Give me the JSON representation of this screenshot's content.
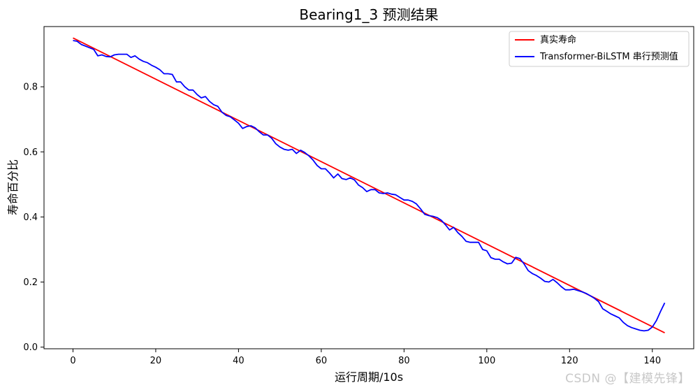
{
  "chart_data": {
    "type": "line",
    "title": "Bearing1_3 预测结果",
    "xlabel": "运行周期/10s",
    "ylabel": "寿命百分比",
    "xlim": [
      -7,
      150
    ],
    "ylim": [
      -0.005,
      0.985
    ],
    "xticks": [
      0,
      20,
      40,
      60,
      80,
      100,
      120,
      140
    ],
    "yticks": [
      0.0,
      0.2,
      0.4,
      0.6,
      0.8
    ],
    "grid": false,
    "legend_position": "top-right",
    "series": [
      {
        "name": "真实寿命",
        "color": "#ff0000",
        "x": [
          0,
          143
        ],
        "y": [
          0.95,
          0.044
        ]
      },
      {
        "name": "Transformer-BiLSTM 串行预测值",
        "color": "#0000ff",
        "x": [
          0,
          1,
          2,
          3,
          4,
          5,
          6,
          7,
          8,
          9,
          10,
          11,
          12,
          13,
          14,
          15,
          16,
          17,
          18,
          19,
          20,
          21,
          22,
          23,
          24,
          25,
          26,
          27,
          28,
          29,
          30,
          31,
          32,
          33,
          34,
          35,
          36,
          37,
          38,
          39,
          40,
          41,
          42,
          43,
          44,
          45,
          46,
          47,
          48,
          49,
          50,
          51,
          52,
          53,
          54,
          55,
          56,
          57,
          58,
          59,
          60,
          61,
          62,
          63,
          64,
          65,
          66,
          67,
          68,
          69,
          70,
          71,
          72,
          73,
          74,
          75,
          76,
          77,
          78,
          79,
          80,
          81,
          82,
          83,
          84,
          85,
          86,
          87,
          88,
          89,
          90,
          91,
          92,
          93,
          94,
          95,
          96,
          97,
          98,
          99,
          100,
          101,
          102,
          103,
          104,
          105,
          106,
          107,
          108,
          109,
          110,
          111,
          112,
          113,
          114,
          115,
          116,
          117,
          118,
          119,
          120,
          121,
          122,
          123,
          124,
          125,
          126,
          127,
          128,
          129,
          130,
          131,
          132,
          133,
          134,
          135,
          136,
          137,
          138,
          139,
          140,
          141,
          142,
          143
        ],
        "y": [
          0.942,
          0.94,
          0.93,
          0.925,
          0.92,
          0.915,
          0.895,
          0.898,
          0.893,
          0.892,
          0.898,
          0.9,
          0.9,
          0.9,
          0.89,
          0.895,
          0.885,
          0.878,
          0.874,
          0.866,
          0.86,
          0.852,
          0.84,
          0.84,
          0.838,
          0.815,
          0.815,
          0.8,
          0.79,
          0.79,
          0.776,
          0.766,
          0.77,
          0.755,
          0.745,
          0.74,
          0.722,
          0.712,
          0.708,
          0.698,
          0.688,
          0.672,
          0.678,
          0.68,
          0.674,
          0.662,
          0.652,
          0.652,
          0.642,
          0.625,
          0.615,
          0.608,
          0.605,
          0.608,
          0.595,
          0.605,
          0.598,
          0.588,
          0.575,
          0.558,
          0.548,
          0.548,
          0.535,
          0.52,
          0.532,
          0.518,
          0.515,
          0.52,
          0.514,
          0.498,
          0.49,
          0.478,
          0.484,
          0.484,
          0.474,
          0.472,
          0.474,
          0.47,
          0.468,
          0.46,
          0.452,
          0.452,
          0.448,
          0.44,
          0.425,
          0.408,
          0.404,
          0.402,
          0.398,
          0.39,
          0.376,
          0.36,
          0.368,
          0.352,
          0.34,
          0.325,
          0.322,
          0.322,
          0.322,
          0.3,
          0.296,
          0.275,
          0.27,
          0.27,
          0.262,
          0.256,
          0.258,
          0.276,
          0.272,
          0.256,
          0.235,
          0.226,
          0.22,
          0.212,
          0.202,
          0.2,
          0.208,
          0.198,
          0.186,
          0.176,
          0.176,
          0.178,
          0.174,
          0.17,
          0.165,
          0.158,
          0.15,
          0.14,
          0.118,
          0.11,
          0.102,
          0.096,
          0.09,
          0.076,
          0.066,
          0.06,
          0.056,
          0.052,
          0.05,
          0.052,
          0.062,
          0.082,
          0.11,
          0.136
        ]
      }
    ]
  },
  "watermark": "CSDN @【建模先锋】"
}
